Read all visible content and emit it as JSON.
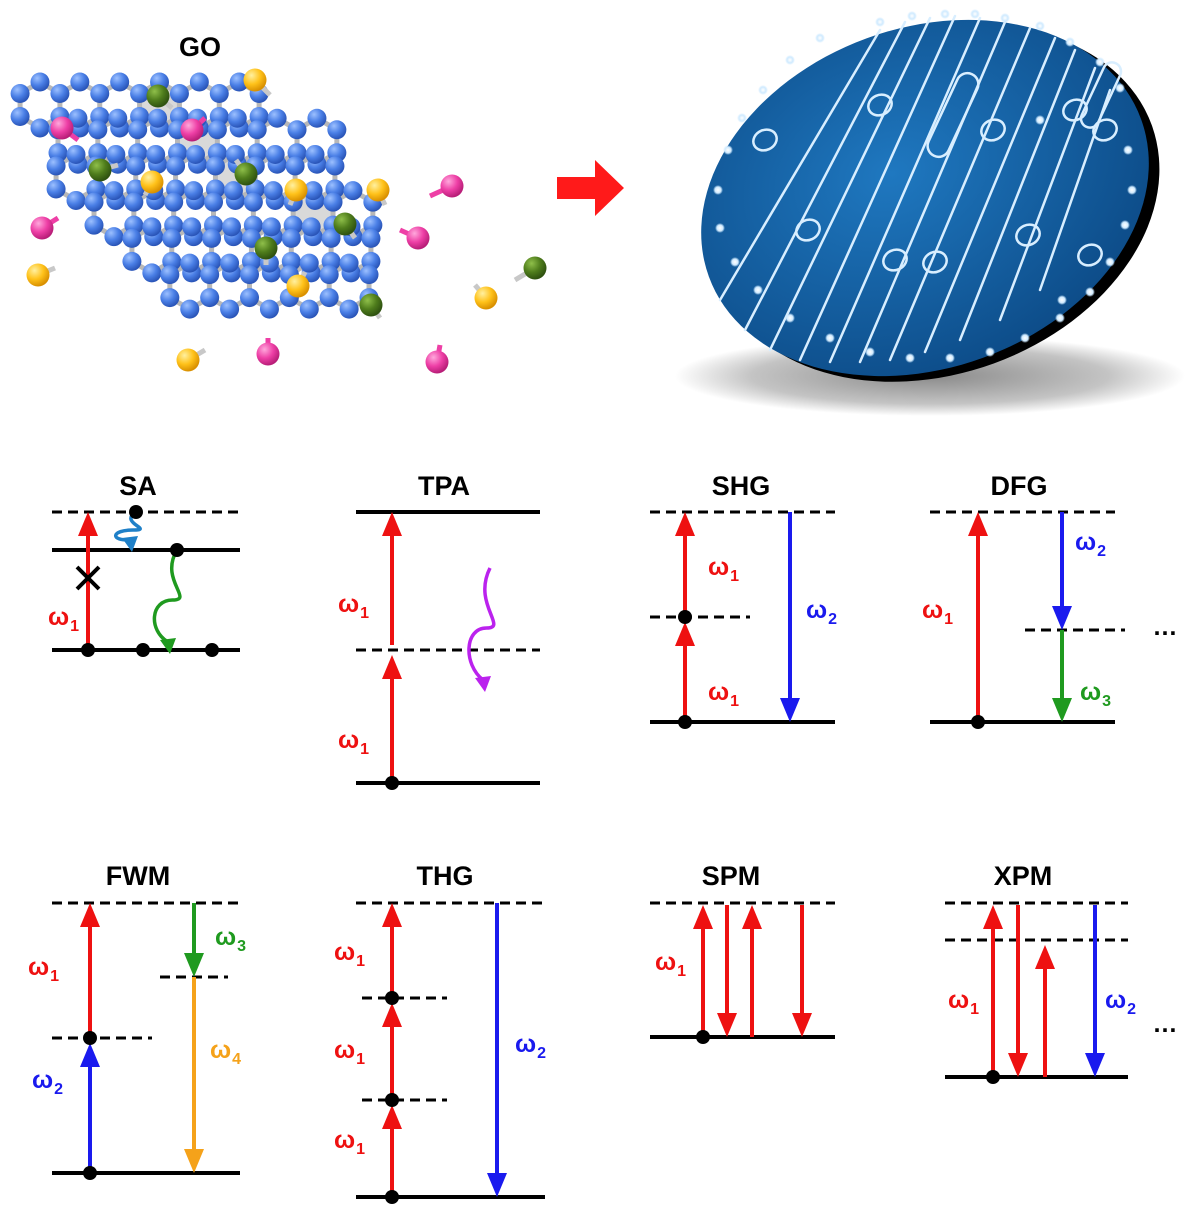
{
  "figure": {
    "go_label": "GO",
    "omega_symbol": "ω",
    "ellipsis": "…",
    "colors": {
      "red": "#ee1111",
      "blue": "#1a1aee",
      "green": "#1f9a1f",
      "orange": "#f5a21a",
      "purple": "#bb22ee",
      "teal": "#1f80c8",
      "chip": "#125a9c",
      "atom_c": "#4a7fe6",
      "atom_o_yellow": "#ffc21a",
      "atom_o_green": "#4f7d1c",
      "atom_o_pink": "#ee3fa6"
    }
  },
  "diagrams": [
    {
      "id": "sa",
      "title": "SA",
      "labels": [
        {
          "text": "ω",
          "sub": "1",
          "color": "red"
        }
      ]
    },
    {
      "id": "tpa",
      "title": "TPA",
      "labels": [
        {
          "text": "ω",
          "sub": "1",
          "color": "red"
        },
        {
          "text": "ω",
          "sub": "1",
          "color": "red"
        }
      ]
    },
    {
      "id": "shg",
      "title": "SHG",
      "labels": [
        {
          "text": "ω",
          "sub": "1",
          "color": "red"
        },
        {
          "text": "ω",
          "sub": "1",
          "color": "red"
        },
        {
          "text": "ω",
          "sub": "2",
          "color": "blue"
        }
      ]
    },
    {
      "id": "dfg",
      "title": "DFG",
      "labels": [
        {
          "text": "ω",
          "sub": "1",
          "color": "red"
        },
        {
          "text": "ω",
          "sub": "2",
          "color": "blue"
        },
        {
          "text": "ω",
          "sub": "3",
          "color": "green"
        }
      ]
    },
    {
      "id": "fwm",
      "title": "FWM",
      "labels": [
        {
          "text": "ω",
          "sub": "1",
          "color": "red"
        },
        {
          "text": "ω",
          "sub": "2",
          "color": "blue"
        },
        {
          "text": "ω",
          "sub": "3",
          "color": "green"
        },
        {
          "text": "ω",
          "sub": "4",
          "color": "orange"
        }
      ]
    },
    {
      "id": "thg",
      "title": "THG",
      "labels": [
        {
          "text": "ω",
          "sub": "1",
          "color": "red"
        },
        {
          "text": "ω",
          "sub": "1",
          "color": "red"
        },
        {
          "text": "ω",
          "sub": "1",
          "color": "red"
        },
        {
          "text": "ω",
          "sub": "2",
          "color": "blue"
        }
      ]
    },
    {
      "id": "spm",
      "title": "SPM",
      "labels": [
        {
          "text": "ω",
          "sub": "1",
          "color": "red"
        }
      ]
    },
    {
      "id": "xpm",
      "title": "XPM",
      "labels": [
        {
          "text": "ω",
          "sub": "1",
          "color": "red"
        },
        {
          "text": "ω",
          "sub": "2",
          "color": "blue"
        }
      ]
    }
  ]
}
